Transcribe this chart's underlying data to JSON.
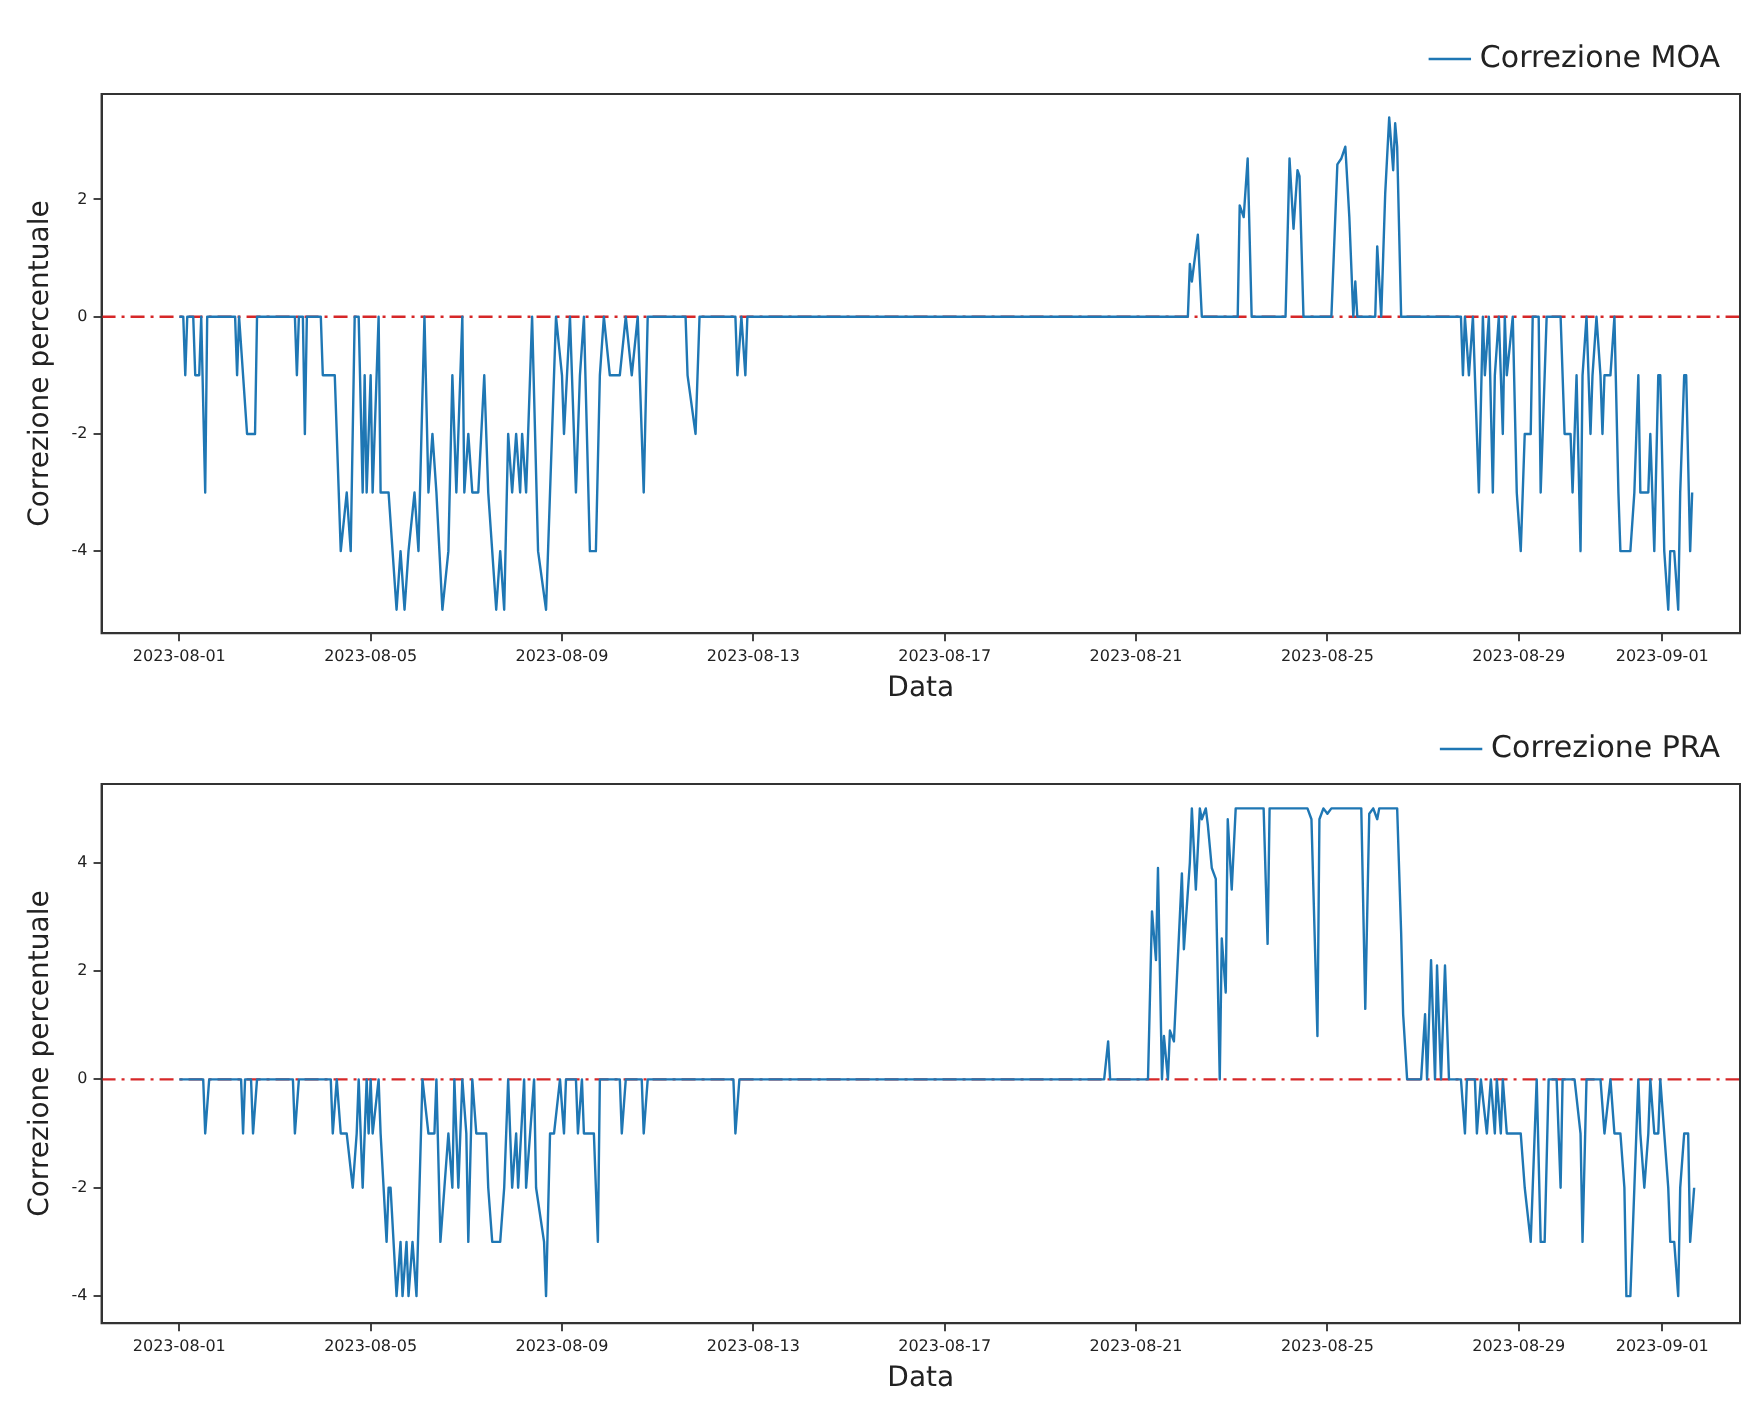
{
  "chart_data": [
    {
      "type": "line",
      "xlabel": "Data",
      "ylabel": "Correzione percentuale",
      "legend": "top right",
      "marker": "none",
      "xlim": [
        "2023-07-30T09:00",
        "2023-09-02T15:00"
      ],
      "xticks": [
        "2023-08-01",
        "2023-08-05",
        "2023-08-09",
        "2023-08-13",
        "2023-08-17",
        "2023-08-21",
        "2023-08-25",
        "2023-08-29",
        "2023-09-01"
      ],
      "ylim": [
        -5.4,
        3.8
      ],
      "yticks": [
        -4,
        -2,
        0,
        2
      ],
      "ref_lines": [
        {
          "axis": "y",
          "value": 0,
          "color": "#d62728",
          "line_style": "dashed"
        }
      ],
      "series": [
        {
          "name": "Correzione MOA",
          "color": "#1f77b4",
          "x": [
            "2023-08-01T00:00",
            "2023-08-01T02:00",
            "2023-08-01T03:00",
            "2023-08-01T04:00",
            "2023-08-01T07:00",
            "2023-08-01T08:00",
            "2023-08-01T10:00",
            "2023-08-01T11:00",
            "2023-08-01T13:00",
            "2023-08-01T14:00",
            "2023-08-02T04:00",
            "2023-08-02T05:00",
            "2023-08-02T06:00",
            "2023-08-02T10:00",
            "2023-08-02T14:00",
            "2023-08-02T15:00",
            "2023-08-03T10:00",
            "2023-08-03T11:00",
            "2023-08-03T12:00",
            "2023-08-03T14:00",
            "2023-08-03T15:00",
            "2023-08-03T16:00",
            "2023-08-03T23:00",
            "2023-08-04T00:00",
            "2023-08-04T06:00",
            "2023-08-04T09:00",
            "2023-08-04T12:00",
            "2023-08-04T14:00",
            "2023-08-04T16:00",
            "2023-08-04T18:00",
            "2023-08-04T20:00",
            "2023-08-04T21:00",
            "2023-08-04T22:00",
            "2023-08-05T00:00",
            "2023-08-05T01:00",
            "2023-08-05T04:00",
            "2023-08-05T05:00",
            "2023-08-05T09:00",
            "2023-08-05T11:00",
            "2023-08-05T13:00",
            "2023-08-05T15:00",
            "2023-08-05T17:00",
            "2023-08-05T19:00",
            "2023-08-05T22:00",
            "2023-08-06T00:00",
            "2023-08-06T03:00",
            "2023-08-06T05:00",
            "2023-08-06T07:00",
            "2023-08-06T09:00",
            "2023-08-06T12:00",
            "2023-08-06T15:00",
            "2023-08-06T17:00",
            "2023-08-06T19:00",
            "2023-08-06T22:00",
            "2023-08-06T23:00",
            "2023-08-07T01:00",
            "2023-08-07T03:00",
            "2023-08-07T06:00",
            "2023-08-07T09:00",
            "2023-08-07T11:00",
            "2023-08-07T13:00",
            "2023-08-07T15:00",
            "2023-08-07T17:00",
            "2023-08-07T19:00",
            "2023-08-07T21:00",
            "2023-08-07T23:00",
            "2023-08-08T01:00",
            "2023-08-08T03:00",
            "2023-08-08T04:00",
            "2023-08-08T06:00",
            "2023-08-08T09:00",
            "2023-08-08T12:00",
            "2023-08-08T16:00",
            "2023-08-08T18:00",
            "2023-08-08T21:00",
            "2023-08-09T00:00",
            "2023-08-09T01:00",
            "2023-08-09T04:00",
            "2023-08-09T07:00",
            "2023-08-09T09:00",
            "2023-08-09T11:00",
            "2023-08-09T14:00",
            "2023-08-09T17:00",
            "2023-08-09T19:00",
            "2023-08-09T21:00",
            "2023-08-10T00:00",
            "2023-08-10T05:00",
            "2023-08-10T08:00",
            "2023-08-10T11:00",
            "2023-08-10T14:00",
            "2023-08-10T17:00",
            "2023-08-10T19:00",
            "2023-08-11T14:00",
            "2023-08-11T15:00",
            "2023-08-11T19:00",
            "2023-08-11T21:00",
            "2023-08-12T15:00",
            "2023-08-12T16:00",
            "2023-08-12T18:00",
            "2023-08-12T20:00",
            "2023-08-12T21:00",
            "2023-08-22T02:00",
            "2023-08-22T03:00",
            "2023-08-22T04:00",
            "2023-08-22T07:00",
            "2023-08-22T09:00",
            "2023-08-23T03:00",
            "2023-08-23T04:00",
            "2023-08-23T06:00",
            "2023-08-23T08:00",
            "2023-08-23T10:00",
            "2023-08-24T03:00",
            "2023-08-24T05:00",
            "2023-08-24T07:00",
            "2023-08-24T09:00",
            "2023-08-24T10:00",
            "2023-08-24T12:00",
            "2023-08-25T02:00",
            "2023-08-25T05:00",
            "2023-08-25T07:00",
            "2023-08-25T09:00",
            "2023-08-25T11:00",
            "2023-08-25T13:00",
            "2023-08-25T14:00",
            "2023-08-25T15:00",
            "2023-08-26T00:00",
            "2023-08-26T01:00",
            "2023-08-26T03:00",
            "2023-08-26T05:00",
            "2023-08-26T07:00",
            "2023-08-26T09:00",
            "2023-08-26T10:00",
            "2023-08-26T11:00",
            "2023-08-26T13:00",
            "2023-08-27T19:00",
            "2023-08-27T20:00",
            "2023-08-27T21:00",
            "2023-08-27T23:00",
            "2023-08-28T01:00",
            "2023-08-28T04:00",
            "2023-08-28T06:00",
            "2023-08-28T07:00",
            "2023-08-28T09:00",
            "2023-08-28T11:00",
            "2023-08-28T12:00",
            "2023-08-28T14:00",
            "2023-08-28T16:00",
            "2023-08-28T17:00",
            "2023-08-28T18:00",
            "2023-08-28T21:00",
            "2023-08-28T23:00",
            "2023-08-29T01:00",
            "2023-08-29T03:00",
            "2023-08-29T06:00",
            "2023-08-29T07:00",
            "2023-08-29T10:00",
            "2023-08-29T11:00",
            "2023-08-29T14:00",
            "2023-08-29T21:00",
            "2023-08-29T23:00",
            "2023-08-30T02:00",
            "2023-08-30T03:00",
            "2023-08-30T05:00",
            "2023-08-30T07:00",
            "2023-08-30T08:00",
            "2023-08-30T10:00",
            "2023-08-30T12:00",
            "2023-08-30T13:00",
            "2023-08-30T15:00",
            "2023-08-30T17:00",
            "2023-08-30T18:00",
            "2023-08-30T19:00",
            "2023-08-30T22:00",
            "2023-08-31T00:00",
            "2023-08-31T02:00",
            "2023-08-31T03:00",
            "2023-08-31T05:00",
            "2023-08-31T08:00",
            "2023-08-31T10:00",
            "2023-08-31T12:00",
            "2023-08-31T13:00",
            "2023-08-31T17:00",
            "2023-08-31T18:00",
            "2023-08-31T20:00",
            "2023-08-31T22:00",
            "2023-08-31T23:00",
            "2023-09-01T01:00",
            "2023-09-01T03:00",
            "2023-09-01T04:00",
            "2023-09-01T06:00",
            "2023-09-01T08:00",
            "2023-09-01T09:00",
            "2023-09-01T11:00",
            "2023-09-01T12:00",
            "2023-09-01T14:00",
            "2023-09-01T15:00"
          ],
          "values": [
            0,
            0,
            -1,
            0,
            0,
            -1,
            -1,
            0,
            -3,
            0,
            0,
            -1,
            0,
            -2,
            -2,
            0,
            0,
            -1,
            0,
            0,
            -2,
            0,
            0,
            -1,
            -1,
            -4,
            -3,
            -4,
            0,
            0,
            -3,
            -1,
            -3,
            -1,
            -3,
            0,
            -3,
            -3,
            -4,
            -5,
            -4,
            -5,
            -4,
            -3,
            -4,
            0,
            -3,
            -2,
            -3,
            -5,
            -4,
            -1,
            -3,
            0,
            -3,
            -2,
            -3,
            -3,
            -1,
            -3,
            -4,
            -5,
            -4,
            -5,
            -2,
            -3,
            -2,
            -3,
            -2,
            -3,
            0,
            -4,
            -5,
            -3,
            0,
            -1,
            -2,
            0,
            -3,
            -1,
            0,
            -4,
            -4,
            -1,
            0,
            -1,
            -1,
            0,
            -1,
            0,
            -3,
            0,
            0,
            -1,
            -2,
            0,
            0,
            -1,
            0,
            -1,
            0,
            0,
            0.9,
            0.6,
            1.4,
            0,
            0,
            1.9,
            1.7,
            2.7,
            0,
            0,
            2.7,
            1.5,
            2.5,
            2.4,
            0,
            0,
            2.6,
            2.7,
            2.9,
            1.7,
            0,
            0.6,
            0,
            0,
            1.2,
            0,
            2.1,
            3.4,
            2.5,
            3.3,
            2.9,
            0,
            0,
            -1,
            0,
            -1,
            0,
            -3,
            0,
            -1,
            0,
            -3,
            -1,
            0,
            -2,
            0,
            -1,
            0,
            -3,
            -4,
            -2,
            -2,
            0,
            0,
            -3,
            0,
            0,
            -2,
            -2,
            -3,
            -1,
            -4,
            -1,
            0,
            -2,
            -1,
            0,
            -1,
            -2,
            -1,
            -1,
            0,
            -3,
            -4,
            -4,
            -4,
            -3,
            -1,
            -3,
            -3,
            -2,
            -4,
            -1,
            -1,
            -4,
            -5,
            -4,
            -4,
            -5,
            -3,
            -1,
            -1,
            -4,
            -3
          ]
        }
      ]
    },
    {
      "type": "line",
      "xlabel": "Data",
      "ylabel": "Correzione percentuale",
      "legend": "top right",
      "marker": "none",
      "xlim": [
        "2023-07-30T09:00",
        "2023-09-02T15:00"
      ],
      "xticks": [
        "2023-08-01",
        "2023-08-05",
        "2023-08-09",
        "2023-08-13",
        "2023-08-17",
        "2023-08-21",
        "2023-08-25",
        "2023-08-29",
        "2023-09-01"
      ],
      "ylim": [
        -4.5,
        5.45
      ],
      "yticks": [
        -4,
        -2,
        0,
        2,
        4
      ],
      "ref_lines": [
        {
          "axis": "y",
          "value": 0,
          "color": "#d62728",
          "line_style": "dashed"
        }
      ],
      "series": [
        {
          "name": "Correzione PRA",
          "color": "#1f77b4",
          "x": [
            "2023-08-01T00:00",
            "2023-08-01T10:00",
            "2023-08-01T12:00",
            "2023-08-01T13:00",
            "2023-08-01T15:00",
            "2023-08-02T07:00",
            "2023-08-02T08:00",
            "2023-08-02T09:00",
            "2023-08-02T12:00",
            "2023-08-02T13:00",
            "2023-08-02T15:00",
            "2023-08-03T09:00",
            "2023-08-03T10:00",
            "2023-08-03T12:00",
            "2023-08-04T04:00",
            "2023-08-04T05:00",
            "2023-08-04T07:00",
            "2023-08-04T09:00",
            "2023-08-04T12:00",
            "2023-08-04T15:00",
            "2023-08-04T17:00",
            "2023-08-04T18:00",
            "2023-08-04T20:00",
            "2023-08-04T22:00",
            "2023-08-04T23:00",
            "2023-08-05T00:00",
            "2023-08-05T01:00",
            "2023-08-05T04:00",
            "2023-08-05T05:00",
            "2023-08-05T08:00",
            "2023-08-05T09:00",
            "2023-08-05T10:00",
            "2023-08-05T13:00",
            "2023-08-05T15:00",
            "2023-08-05T16:00",
            "2023-08-05T18:00",
            "2023-08-05T19:00",
            "2023-08-05T21:00",
            "2023-08-05T23:00",
            "2023-08-06T02:00",
            "2023-08-06T05:00",
            "2023-08-06T08:00",
            "2023-08-06T09:00",
            "2023-08-06T11:00",
            "2023-08-06T13:00",
            "2023-08-06T15:00",
            "2023-08-06T17:00",
            "2023-08-06T18:00",
            "2023-08-06T20:00",
            "2023-08-06T22:00",
            "2023-08-07T00:00",
            "2023-08-07T01:00",
            "2023-08-07T03:00",
            "2023-08-07T05:00",
            "2023-08-07T10:00",
            "2023-08-07T11:00",
            "2023-08-07T13:00",
            "2023-08-07T17:00",
            "2023-08-07T19:00",
            "2023-08-07T21:00",
            "2023-08-07T23:00",
            "2023-08-08T01:00",
            "2023-08-08T02:00",
            "2023-08-08T05:00",
            "2023-08-08T06:00",
            "2023-08-08T08:00",
            "2023-08-08T10:00",
            "2023-08-08T11:00",
            "2023-08-08T15:00",
            "2023-08-08T16:00",
            "2023-08-08T18:00",
            "2023-08-08T20:00",
            "2023-08-08T23:00",
            "2023-08-09T01:00",
            "2023-08-09T02:00",
            "2023-08-09T07:00",
            "2023-08-09T08:00",
            "2023-08-09T10:00",
            "2023-08-09T11:00",
            "2023-08-09T16:00",
            "2023-08-09T18:00",
            "2023-08-09T19:00",
            "2023-08-10T05:00",
            "2023-08-10T06:00",
            "2023-08-10T08:00",
            "2023-08-10T16:00",
            "2023-08-10T17:00",
            "2023-08-10T19:00",
            "2023-08-12T14:00",
            "2023-08-12T15:00",
            "2023-08-12T17:00",
            "2023-08-20T08:00",
            "2023-08-20T10:00",
            "2023-08-20T11:00",
            "2023-08-21T06:00",
            "2023-08-21T08:00",
            "2023-08-21T10:00",
            "2023-08-21T11:00",
            "2023-08-21T13:00",
            "2023-08-21T14:00",
            "2023-08-21T16:00",
            "2023-08-21T17:00",
            "2023-08-21T19:00",
            "2023-08-21T23:00",
            "2023-08-22T00:00",
            "2023-08-22T03:00",
            "2023-08-22T04:00",
            "2023-08-22T06:00",
            "2023-08-22T08:00",
            "2023-08-22T09:00",
            "2023-08-22T11:00",
            "2023-08-22T12:00",
            "2023-08-22T14:00",
            "2023-08-22T16:00",
            "2023-08-22T18:00",
            "2023-08-22T19:00",
            "2023-08-22T21:00",
            "2023-08-22T22:00",
            "2023-08-23T00:00",
            "2023-08-23T02:00",
            "2023-08-23T16:00",
            "2023-08-23T18:00",
            "2023-08-23T19:00",
            "2023-08-24T14:00",
            "2023-08-24T16:00",
            "2023-08-24T19:00",
            "2023-08-24T20:00",
            "2023-08-24T22:00",
            "2023-08-25T00:00",
            "2023-08-25T02:00",
            "2023-08-25T17:00",
            "2023-08-25T19:00",
            "2023-08-25T21:00",
            "2023-08-25T23:00",
            "2023-08-26T01:00",
            "2023-08-26T02:00",
            "2023-08-26T11:00",
            "2023-08-26T13:00",
            "2023-08-26T14:00",
            "2023-08-26T16:00",
            "2023-08-26T23:00",
            "2023-08-27T01:00",
            "2023-08-27T02:00",
            "2023-08-27T04:00",
            "2023-08-27T06:00",
            "2023-08-27T07:00",
            "2023-08-27T09:00",
            "2023-08-27T11:00",
            "2023-08-27T13:00",
            "2023-08-27T19:00",
            "2023-08-27T21:00",
            "2023-08-27T22:00",
            "2023-08-28T02:00",
            "2023-08-28T03:00",
            "2023-08-28T05:00",
            "2023-08-28T08:00",
            "2023-08-28T10:00",
            "2023-08-28T12:00",
            "2023-08-28T13:00",
            "2023-08-28T15:00",
            "2023-08-28T16:00",
            "2023-08-28T18:00",
            "2023-08-29T01:00",
            "2023-08-29T03:00",
            "2023-08-29T06:00",
            "2023-08-29T07:00",
            "2023-08-29T09:00",
            "2023-08-29T11:00",
            "2023-08-29T13:00",
            "2023-08-29T15:00",
            "2023-08-29T19:00",
            "2023-08-29T21:00",
            "2023-08-29T22:00",
            "2023-08-30T04:00",
            "2023-08-30T07:00",
            "2023-08-30T08:00",
            "2023-08-30T10:00",
            "2023-08-30T17:00",
            "2023-08-30T19:00",
            "2023-08-30T22:00",
            "2023-08-31T00:00",
            "2023-08-31T03:00",
            "2023-08-31T05:00",
            "2023-08-31T06:00",
            "2023-08-31T08:00",
            "2023-08-31T10:00",
            "2023-08-31T12:00",
            "2023-08-31T13:00",
            "2023-08-31T15:00",
            "2023-08-31T17:00",
            "2023-08-31T18:00",
            "2023-08-31T20:00",
            "2023-08-31T22:00",
            "2023-08-31T23:00",
            "2023-09-01T01:00",
            "2023-09-01T03:00",
            "2023-09-01T04:00",
            "2023-09-01T06:00",
            "2023-09-01T08:00",
            "2023-09-01T09:00",
            "2023-09-01T11:00",
            "2023-09-01T13:00",
            "2023-09-01T14:00",
            "2023-09-01T16:00"
          ],
          "values": [
            0,
            0,
            0,
            -1,
            0,
            0,
            -1,
            0,
            0,
            -1,
            0,
            0,
            -1,
            0,
            0,
            -1,
            0,
            -1,
            -1,
            -2,
            -1,
            0,
            -2,
            0,
            -1,
            0,
            -1,
            0,
            -1,
            -3,
            -2,
            -2,
            -4,
            -3,
            -4,
            -3,
            -4,
            -3,
            -4,
            0,
            -1,
            -1,
            0,
            -3,
            -2,
            -1,
            -2,
            0,
            -2,
            0,
            -1,
            -3,
            0,
            -1,
            -1,
            -2,
            -3,
            -3,
            -2,
            0,
            -2,
            -1,
            -2,
            0,
            -2,
            -1,
            0,
            -2,
            -3,
            -4,
            -1,
            -1,
            0,
            -1,
            0,
            0,
            -1,
            0,
            -1,
            -1,
            -3,
            0,
            0,
            -1,
            0,
            0,
            -1,
            0,
            0,
            -1,
            0,
            0,
            0.7,
            0,
            0,
            3.1,
            2.2,
            3.9,
            0,
            0.8,
            0,
            0.9,
            0.7,
            3.8,
            2.4,
            4,
            5,
            3.5,
            5,
            4.8,
            5,
            4.7,
            3.9,
            3.7,
            0,
            2.6,
            1.6,
            4.8,
            3.5,
            5,
            5,
            2.5,
            5,
            5,
            4.8,
            0.8,
            4.8,
            5,
            4.9,
            5,
            5,
            1.3,
            4.9,
            5,
            4.8,
            5,
            5,
            2.7,
            1.2,
            0,
            0,
            1.2,
            0,
            2.2,
            0,
            2.1,
            0,
            2.1,
            0,
            0,
            -1,
            0,
            0,
            -1,
            0,
            -1,
            0,
            -1,
            0,
            -1,
            0,
            -1,
            -1,
            -2,
            -3,
            -2,
            0,
            -3,
            -3,
            0,
            0,
            -2,
            0,
            0,
            -1,
            -3,
            0,
            0,
            -1,
            0,
            -1,
            -1,
            -2,
            -4,
            -4,
            -2,
            0,
            -1,
            -2,
            -1,
            0,
            -1,
            -1,
            0,
            -1,
            -2,
            -3,
            -3,
            -4,
            -2,
            -1,
            -1,
            -3,
            -2
          ]
        }
      ]
    }
  ]
}
